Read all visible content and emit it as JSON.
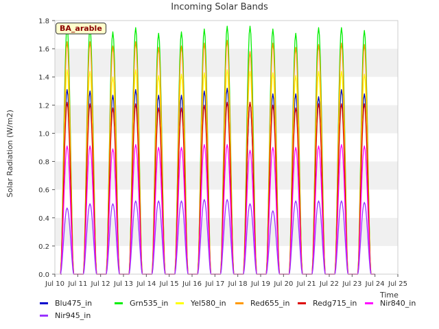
{
  "chart_data": {
    "type": "line",
    "title": "Incoming Solar Bands",
    "xlabel": "Time",
    "ylabel": "Solar Radiation (W/m2)",
    "badge": "BA_arable",
    "ylim": [
      0.0,
      1.8
    ],
    "xlim": [
      10,
      25
    ],
    "y_ticks": [
      "0.0",
      "0.2",
      "0.4",
      "0.6",
      "0.8",
      "1.0",
      "1.2",
      "1.4",
      "1.6",
      "1.8"
    ],
    "x_ticks": [
      "Jul 10",
      "Jul 11",
      "Jul 12",
      "Jul 13",
      "Jul 14",
      "Jul 15",
      "Jul 16",
      "Jul 17",
      "Jul 18",
      "Jul 19",
      "Jul 20",
      "Jul 21",
      "Jul 22",
      "Jul 23",
      "Jul 24",
      "Jul 25"
    ],
    "grid": "horizontal bands",
    "legend_position": "bottom",
    "days": [
      "Jul 10",
      "Jul 11",
      "Jul 12",
      "Jul 13",
      "Jul 14",
      "Jul 15",
      "Jul 16",
      "Jul 17",
      "Jul 18",
      "Jul 19",
      "Jul 20",
      "Jul 21",
      "Jul 22",
      "Jul 23"
    ],
    "series": [
      {
        "name": "Blu475_in",
        "color": "#0000cc",
        "daily_peak": [
          1.31,
          1.3,
          1.27,
          1.31,
          1.27,
          1.27,
          1.3,
          1.32,
          1.22,
          1.28,
          1.28,
          1.26,
          1.31,
          1.28
        ]
      },
      {
        "name": "Grn535_in",
        "color": "#00ee00",
        "daily_peak": [
          1.76,
          1.75,
          1.72,
          1.75,
          1.71,
          1.72,
          1.74,
          1.76,
          1.76,
          1.74,
          1.71,
          1.75,
          1.75,
          1.73
        ]
      },
      {
        "name": "Yel580_in",
        "color": "#ffff00",
        "daily_peak": [
          1.45,
          1.44,
          1.4,
          1.45,
          1.41,
          1.42,
          1.43,
          1.45,
          1.44,
          1.43,
          1.41,
          1.44,
          1.44,
          1.42
        ]
      },
      {
        "name": "Red655_in",
        "color": "#ff9900",
        "daily_peak": [
          1.65,
          1.65,
          1.62,
          1.65,
          1.61,
          1.62,
          1.64,
          1.66,
          1.58,
          1.64,
          1.61,
          1.63,
          1.64,
          1.63
        ]
      },
      {
        "name": "Redg715_in",
        "color": "#dd0000",
        "daily_peak": [
          1.22,
          1.21,
          1.18,
          1.21,
          1.18,
          1.18,
          1.2,
          1.22,
          1.22,
          1.2,
          1.18,
          1.21,
          1.21,
          1.21
        ]
      },
      {
        "name": "Nir840_in",
        "color": "#ff00ff",
        "daily_peak": [
          0.91,
          0.91,
          0.89,
          0.92,
          0.9,
          0.9,
          0.92,
          0.92,
          0.88,
          0.9,
          0.9,
          0.91,
          0.92,
          0.91
        ]
      },
      {
        "name": "Nir945_in",
        "color": "#9933ff",
        "daily_peak": [
          0.47,
          0.5,
          0.5,
          0.52,
          0.52,
          0.52,
          0.53,
          0.53,
          0.5,
          0.45,
          0.52,
          0.52,
          0.52,
          0.51
        ]
      }
    ]
  }
}
